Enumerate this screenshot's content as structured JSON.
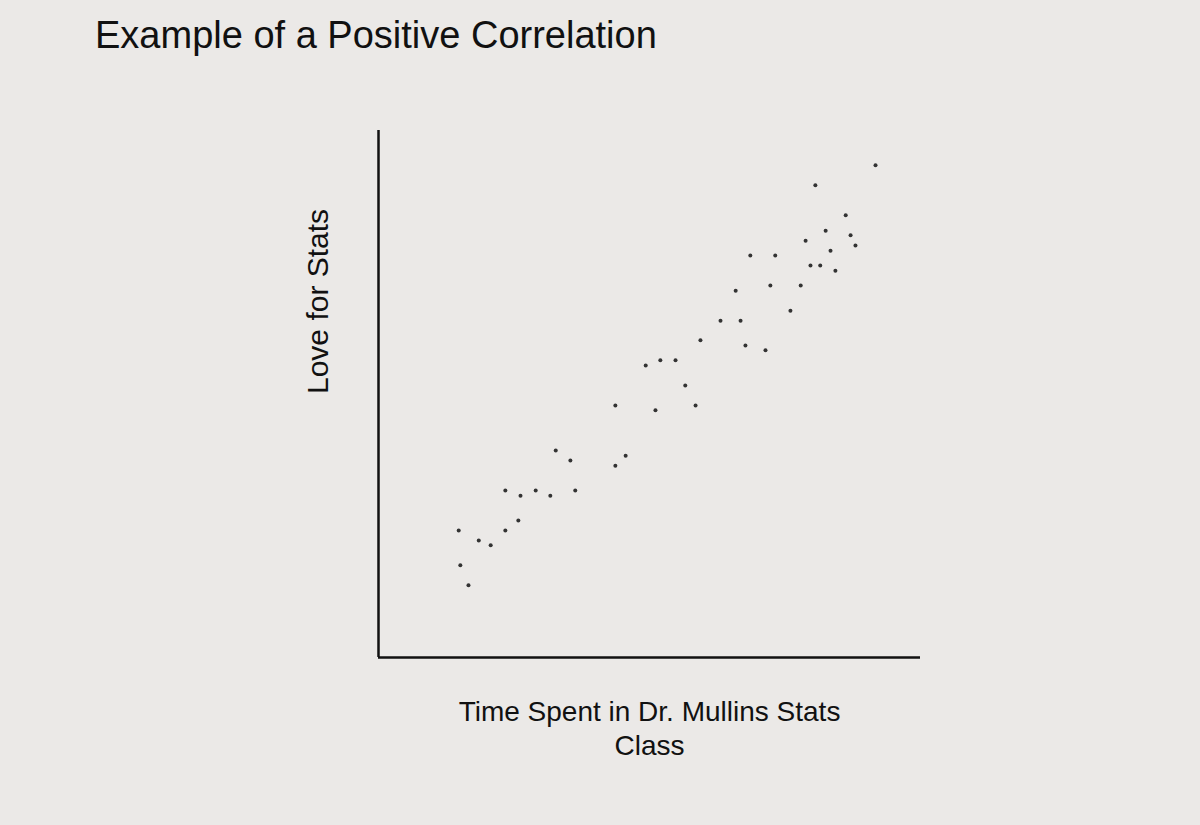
{
  "chart_data": {
    "type": "scatter",
    "title": "Example of a Positive Correlation",
    "x_label": "Time Spent in Dr. Mullins Stats Class",
    "y_label": "Love for Stats",
    "x": [
      16.6,
      15.1,
      14.8,
      18.5,
      20.7,
      23.4,
      25.8,
      23.4,
      26.2,
      29.0,
      31.7,
      36.3,
      32.7,
      35.4,
      43.7,
      45.6,
      43.7,
      51.1,
      49.3,
      52.0,
      54.8,
      56.6,
      58.5,
      59.4,
      63.1,
      66.8,
      65.9,
      67.7,
      71.4,
      72.3,
      68.6,
      73.2,
      76.0,
      77.9,
      79.7,
      78.8,
      80.6,
      82.5,
      83.4,
      86.2,
      87.1,
      84.3,
      88.0,
      81.5,
      91.7
    ],
    "values": [
      13.7,
      17.5,
      24.1,
      22.2,
      21.3,
      24.1,
      26.0,
      31.7,
      30.7,
      31.7,
      30.7,
      31.7,
      39.3,
      37.4,
      36.4,
      38.3,
      47.8,
      46.9,
      55.4,
      56.4,
      56.4,
      51.6,
      47.8,
      60.2,
      63.9,
      63.9,
      69.6,
      59.2,
      58.3,
      70.6,
      76.3,
      76.3,
      65.8,
      70.6,
      74.4,
      79.1,
      89.6,
      81.0,
      77.2,
      83.9,
      80.1,
      73.4,
      78.2,
      74.4,
      93.4
    ],
    "color": "#333333",
    "marker": "dot",
    "xlim": [
      0,
      100
    ],
    "ylim": [
      0,
      100
    ],
    "xticks": [],
    "yticks": [],
    "tick_labels": false,
    "grid": false
  }
}
